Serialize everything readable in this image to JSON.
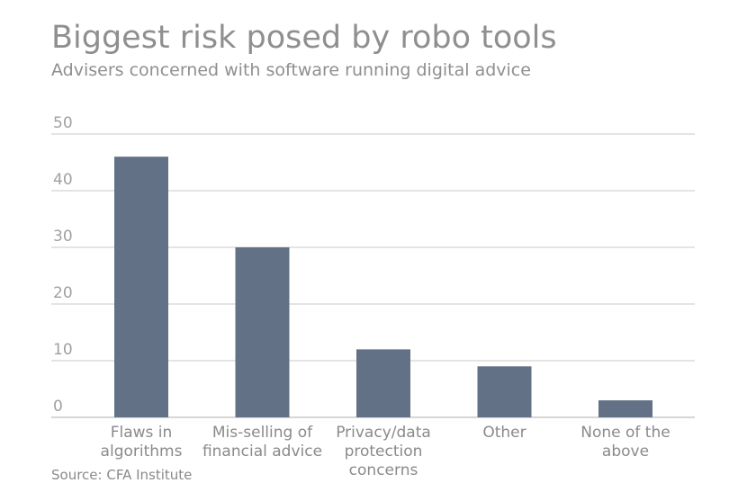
{
  "header": {
    "title": "Biggest risk posed by robo tools",
    "subtitle": "Advisers concerned with software running digital advice"
  },
  "footer": {
    "source": "Source: CFA Institute"
  },
  "chart_data": {
    "type": "bar",
    "categories": [
      [
        "Flaws in",
        "algorithms"
      ],
      [
        "Mis-selling of",
        "financial advice"
      ],
      [
        "Privacy/data",
        "protection",
        "concerns"
      ],
      [
        "Other"
      ],
      [
        "None of the",
        "above"
      ]
    ],
    "values": [
      46,
      30,
      12,
      9,
      3
    ],
    "yticks": [
      0,
      10,
      20,
      30,
      40,
      50
    ],
    "ylim": [
      0,
      50
    ],
    "grid": true,
    "bar_color": "#627185",
    "grid_color": "#c8c8c8",
    "title": "Biggest risk posed by robo tools",
    "subtitle": "Advisers concerned with software running digital advice",
    "xlabel": "",
    "ylabel": ""
  }
}
